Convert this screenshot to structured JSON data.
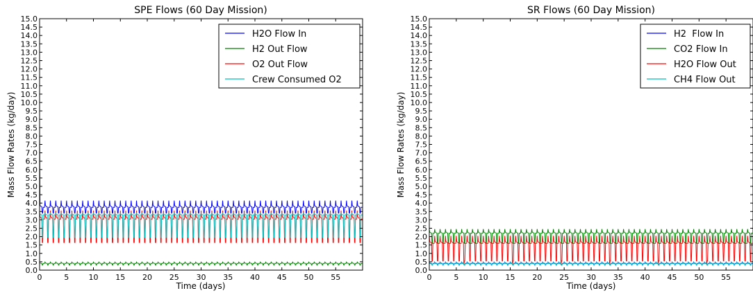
{
  "chart_data": [
    {
      "type": "line",
      "title": "SPE Flows (60 Day Mission)",
      "xlabel": "Time (days)",
      "ylabel": "Mass Flow Rates (kg/day)",
      "xlim": [
        0,
        60
      ],
      "ylim": [
        0,
        15
      ],
      "xticks": [
        "0",
        "5",
        "10",
        "15",
        "20",
        "25",
        "30",
        "35",
        "40",
        "45",
        "50",
        "55"
      ],
      "yticks": [
        "0.0",
        "0.5",
        "1.0",
        "1.5",
        "2.0",
        "2.5",
        "3.0",
        "3.5",
        "4.0",
        "4.5",
        "5.0",
        "5.5",
        "6.0",
        "6.5",
        "7.0",
        "7.5",
        "8.0",
        "8.5",
        "9.0",
        "9.5",
        "10.0",
        "10.5",
        "11.0",
        "11.5",
        "12.0",
        "12.5",
        "13.0",
        "13.5",
        "14.0",
        "14.5",
        "15.0"
      ],
      "grid": false,
      "legend_position": "top-right",
      "series": [
        {
          "name": "H2O Flow In",
          "color": "#0000ff",
          "pattern": "daily oscillation",
          "min": 3.4,
          "max": 4.15,
          "mean": 3.75,
          "initial_spike": 8.6
        },
        {
          "name": "H2 Out Flow",
          "color": "#008000",
          "pattern": "daily oscillation",
          "min": 0.3,
          "max": 0.48,
          "mean": 0.4
        },
        {
          "name": "O2 Out Flow",
          "color": "#ff0000",
          "pattern": "daily oscillation",
          "min": 1.65,
          "max": 3.55,
          "mean": 3.05
        },
        {
          "name": "Crew Consumed O2",
          "color": "#00bfbf",
          "pattern": "daily oscillation",
          "min": 1.95,
          "max": 3.4,
          "mean": 3.3
        }
      ]
    },
    {
      "type": "line",
      "title": "SR Flows (60 Day Mission)",
      "xlabel": "Time (days)",
      "ylabel": "Mass Flow Rates (kg/day)",
      "xlim": [
        0,
        60
      ],
      "ylim": [
        0,
        15
      ],
      "xticks": [
        "0",
        "5",
        "10",
        "15",
        "20",
        "25",
        "30",
        "35",
        "40",
        "45",
        "50",
        "55"
      ],
      "yticks": [
        "0.0",
        "0.5",
        "1.0",
        "1.5",
        "2.0",
        "2.5",
        "3.0",
        "3.5",
        "4.0",
        "4.5",
        "5.0",
        "5.5",
        "6.0",
        "6.5",
        "7.0",
        "7.5",
        "8.0",
        "8.5",
        "9.0",
        "9.5",
        "10.0",
        "10.5",
        "11.0",
        "11.5",
        "12.0",
        "12.5",
        "13.0",
        "13.5",
        "14.0",
        "14.5",
        "15.0"
      ],
      "grid": false,
      "legend_position": "top-right",
      "series": [
        {
          "name": "H2  Flow In",
          "color": "#0000ff",
          "pattern": "daily oscillation",
          "min": 0.3,
          "max": 0.48,
          "mean": 0.4
        },
        {
          "name": "CO2 Flow In",
          "color": "#008000",
          "pattern": "daily oscillation",
          "min": 1.6,
          "max": 2.45,
          "mean": 2.2
        },
        {
          "name": "H2O Flow Out",
          "color": "#ff0000",
          "pattern": "daily oscillation",
          "min": 0.55,
          "max": 2.05,
          "mean": 1.6,
          "dips_to": 0.3
        },
        {
          "name": "CH4 Flow Out",
          "color": "#00bfbf",
          "pattern": "daily oscillation",
          "min": 0.3,
          "max": 0.45,
          "mean": 0.38
        }
      ]
    }
  ]
}
